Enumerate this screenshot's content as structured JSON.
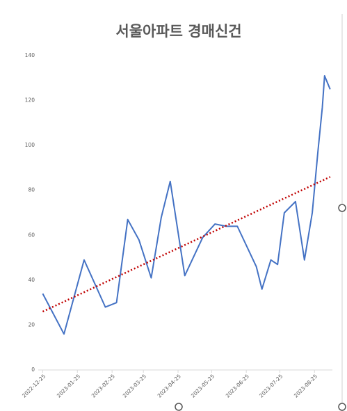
{
  "chart_data": {
    "type": "line",
    "title": "서울아파트 경매신건",
    "x": [
      "2022-12-25",
      "2023-01-13",
      "2023-01-31",
      "2023-02-19",
      "2023-03-01",
      "2023-03-11",
      "2023-03-21",
      "2023-04-01",
      "2023-04-10",
      "2023-04-18",
      "2023-05-01",
      "2023-05-17",
      "2023-05-28",
      "2023-06-07",
      "2023-06-17",
      "2023-07-04",
      "2023-07-09",
      "2023-07-17",
      "2023-07-23",
      "2023-07-29",
      "2023-08-08",
      "2023-08-16",
      "2023-08-23",
      "2023-08-28",
      "2023-09-01",
      "2023-09-03",
      "2023-09-08"
    ],
    "series": [
      {
        "color": "#4472c4",
        "values": [
          34,
          16,
          49,
          28,
          30,
          67,
          58,
          41,
          68,
          84,
          42,
          59,
          65,
          64,
          64,
          46,
          36,
          49,
          47,
          70,
          75,
          49,
          70,
          97,
          117,
          131,
          125
        ]
      }
    ],
    "trendline": {
      "color": "#c00000",
      "values": [
        26,
        86
      ]
    },
    "xlim": [
      "2022-12-21",
      "2023-09-10"
    ],
    "xticks": [
      "2022-12-25",
      "2023-01-25",
      "2023-02-25",
      "2023-03-25",
      "2023-04-25",
      "2023-05-25",
      "2023-06-25",
      "2023-07-25",
      "2023-08-25"
    ],
    "ylim": [
      0,
      140
    ],
    "yticks": [
      0,
      20,
      40,
      60,
      80,
      100,
      120,
      140
    ],
    "grid": false
  }
}
